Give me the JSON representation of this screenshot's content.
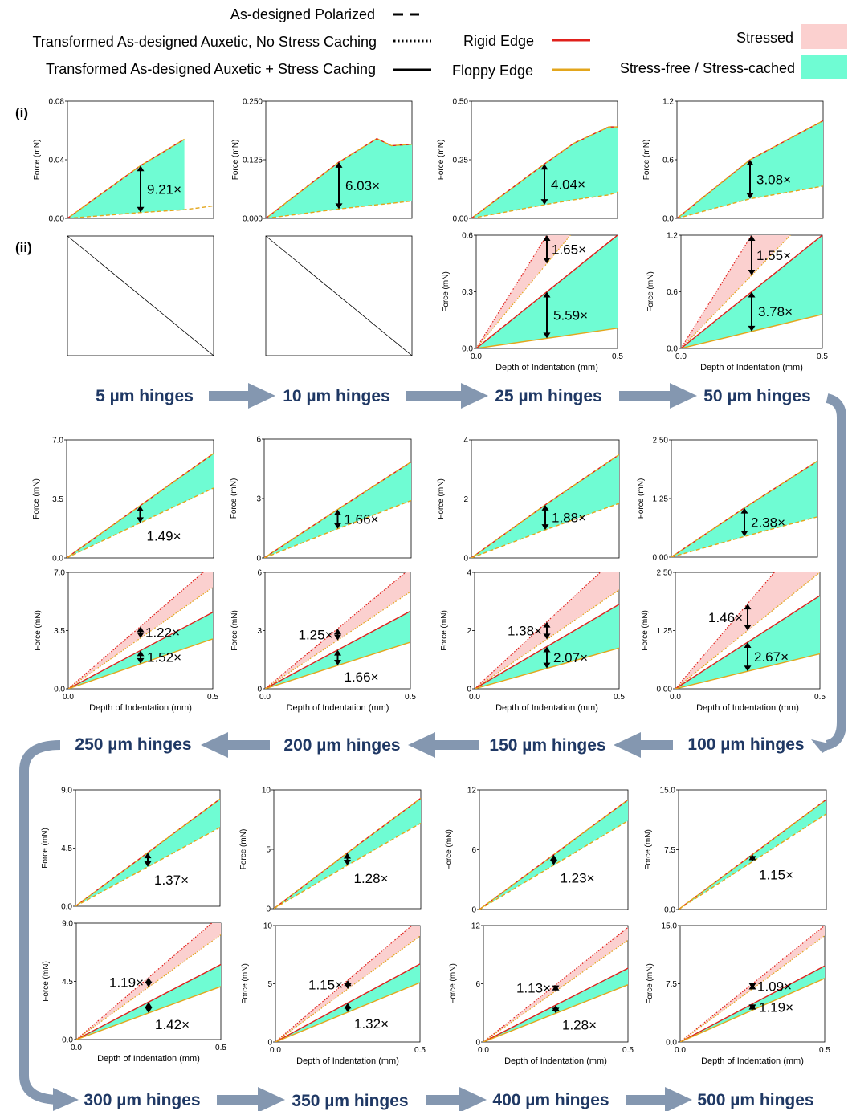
{
  "colors": {
    "rigid": "#e0201b",
    "floppy": "#e3a61c",
    "stressed": "#fbd0cf",
    "stressfree": "#6ffcd3",
    "arrow": "#8497b0",
    "hinge_text": "#1f3864"
  },
  "legend": {
    "polarized": "As-designed Polarized",
    "no_cache": "Transformed As-designed Auxetic, No Stress Caching",
    "cache": "Transformed As-designed Auxetic + Stress Caching",
    "rigid": "Rigid Edge",
    "floppy": "Floppy Edge",
    "stressed": "Stressed",
    "stressfree": "Stress-free / Stress-cached"
  },
  "row_labels": {
    "i": "(i)",
    "ii": "(ii)"
  },
  "axis": {
    "ylabel": "Force (mN)",
    "xlabel": "Depth of Indentation (mm)"
  },
  "hinges": [
    "5 µm hinges",
    "10 µm hinges",
    "25 µm hinges",
    "50 µm hinges",
    "100 µm hinges",
    "150 µm hinges",
    "200 µm hinges",
    "250 µm hinges",
    "300 µm hinges",
    "350 µm hinges",
    "400 µm hinges",
    "500 µm hinges"
  ],
  "chart_data": [
    {
      "type": "area",
      "hinge": "5 µm hinges",
      "panel": "i",
      "x": [
        0,
        0.25,
        0.4
      ],
      "rigid_y": [
        0,
        0.036,
        0.054
      ],
      "floppy_y": [
        0,
        0.004,
        0.0059
      ],
      "floppy_ext": [
        0.5,
        0.0085
      ],
      "ratio_label": "9.21×",
      "ylim": [
        0,
        0.08
      ],
      "yticks": [
        "0.00",
        "0.04",
        "0.08"
      ],
      "xticks": []
    },
    {
      "type": "empty",
      "hinge": "5 µm hinges",
      "panel": "ii"
    },
    {
      "type": "area",
      "hinge": "10 µm hinges",
      "panel": "i",
      "x": [
        0,
        0.25,
        0.38,
        0.43,
        0.5
      ],
      "rigid_y": [
        0,
        0.12,
        0.17,
        0.155,
        0.158
      ],
      "floppy_y": [
        0,
        0.02,
        0.029,
        0.032,
        0.037
      ],
      "ratio_label": "6.03×",
      "ylim": [
        0,
        0.25
      ],
      "yticks": [
        "0.000",
        "0.125",
        "0.250"
      ],
      "xticks": []
    },
    {
      "type": "empty",
      "hinge": "10 µm hinges",
      "panel": "ii"
    },
    {
      "type": "area",
      "hinge": "25 µm hinges",
      "panel": "i",
      "x": [
        0,
        0.25,
        0.35,
        0.47,
        0.5
      ],
      "rigid_y": [
        0,
        0.232,
        0.32,
        0.39,
        0.39
      ],
      "floppy_y": [
        0,
        0.058,
        0.079,
        0.1,
        0.112
      ],
      "ratio_label": "4.04×",
      "ylim": [
        0,
        0.5
      ],
      "yticks": [
        "0.00",
        "0.25",
        "0.50"
      ],
      "xticks": []
    },
    {
      "type": "line",
      "hinge": "25 µm hinges",
      "panel": "ii",
      "x": [
        0,
        0.5
      ],
      "nocache_rigid": [
        0,
        1.2
      ],
      "nocache_floppy": [
        0,
        0.9
      ],
      "rigid_y": [
        0,
        0.6
      ],
      "floppy_y": [
        0,
        0.107
      ],
      "ratio_upper": "1.65×",
      "ratio_lower": "5.59×",
      "ylim": [
        0,
        0.6
      ],
      "yticks": [
        "0.0",
        "0.3",
        "0.6"
      ],
      "xticks": [
        "0.0",
        "0.5"
      ]
    },
    {
      "type": "area",
      "hinge": "50 µm hinges",
      "panel": "i",
      "x": [
        0,
        0.25,
        0.5
      ],
      "rigid_y": [
        0,
        0.6,
        1.0
      ],
      "floppy_y": [
        0,
        0.2,
        0.33
      ],
      "ratio_label": "3.08×",
      "ylim": [
        0,
        1.2
      ],
      "yticks": [
        "0.0",
        "0.6",
        "1.2"
      ],
      "xticks": []
    },
    {
      "type": "line",
      "hinge": "50 µm hinges",
      "panel": "ii",
      "x": [
        0,
        0.5
      ],
      "nocache_rigid": [
        0,
        2.4
      ],
      "nocache_floppy": [
        0,
        1.55
      ],
      "rigid_y": [
        0,
        1.2
      ],
      "floppy_y": [
        0,
        0.36
      ],
      "ratio_upper": "1.55×",
      "ratio_lower": "3.78×",
      "ylim": [
        0,
        1.2
      ],
      "yticks": [
        "0.0",
        "0.6",
        "1.2"
      ],
      "xticks": [
        "0.0",
        "0.5"
      ]
    },
    {
      "type": "area",
      "hinge": "100 µm hinges",
      "panel": "i",
      "x": [
        0,
        0.25,
        0.5
      ],
      "rigid_y": [
        0,
        1.05,
        2.05
      ],
      "floppy_y": [
        0,
        0.44,
        0.86
      ],
      "ratio_label": "2.38×",
      "ylim": [
        0,
        2.5
      ],
      "yticks": [
        "0.00",
        "1.25",
        "2.50"
      ],
      "xticks": []
    },
    {
      "type": "line",
      "hinge": "100 µm hinges",
      "panel": "ii",
      "x": [
        0,
        0.5
      ],
      "nocache_rigid": [
        0,
        3.65
      ],
      "nocache_floppy": [
        0,
        2.5
      ],
      "rigid_y": [
        0,
        2.0
      ],
      "floppy_y": [
        0,
        0.75
      ],
      "ratio_upper": "1.46×",
      "ratio_lower": "2.67×",
      "ylim": [
        0,
        2.5
      ],
      "yticks": [
        "0.00",
        "1.25",
        "2.50"
      ],
      "xticks": [
        "0.0",
        "0.5"
      ]
    },
    {
      "type": "area",
      "hinge": "150 µm hinges",
      "panel": "i",
      "x": [
        0,
        0.25,
        0.5
      ],
      "rigid_y": [
        0,
        1.8,
        3.5
      ],
      "floppy_y": [
        0,
        0.95,
        1.85
      ],
      "ratio_label": "1.88×",
      "ylim": [
        0,
        4
      ],
      "yticks": [
        "0",
        "2",
        "4"
      ],
      "xticks": []
    },
    {
      "type": "line",
      "hinge": "150 µm hinges",
      "panel": "ii",
      "x": [
        0,
        0.5
      ],
      "nocache_rigid": [
        0,
        4.6
      ],
      "nocache_floppy": [
        0,
        3.4
      ],
      "rigid_y": [
        0,
        2.9
      ],
      "floppy_y": [
        0,
        1.4
      ],
      "ratio_upper": "1.38×",
      "ratio_lower": "2.07×",
      "ylim": [
        0,
        4
      ],
      "yticks": [
        "0",
        "2",
        "4"
      ],
      "xticks": [
        "0.0",
        "0.5"
      ]
    },
    {
      "type": "area",
      "hinge": "200 µm hinges",
      "panel": "i",
      "x": [
        0,
        0.25,
        0.5
      ],
      "rigid_y": [
        0,
        2.45,
        4.85
      ],
      "floppy_y": [
        0,
        1.47,
        2.9
      ],
      "ratio_label": "1.66×",
      "ylim": [
        0,
        6
      ],
      "yticks": [
        "0",
        "3",
        "6"
      ],
      "xticks": []
    },
    {
      "type": "line",
      "hinge": "200 µm hinges",
      "panel": "ii",
      "x": [
        0,
        0.5
      ],
      "nocache_rigid": [
        0,
        6.2
      ],
      "nocache_floppy": [
        0,
        5.0
      ],
      "rigid_y": [
        0,
        4.0
      ],
      "floppy_y": [
        0,
        2.4
      ],
      "ratio_upper": "1.25×",
      "ratio_lower": "1.66×",
      "ylim": [
        0,
        6
      ],
      "yticks": [
        "0",
        "3",
        "6"
      ],
      "xticks": [
        "0.0",
        "0.5"
      ]
    },
    {
      "type": "area",
      "hinge": "250 µm hinges",
      "panel": "i",
      "x": [
        0,
        0.25,
        0.5
      ],
      "rigid_y": [
        0,
        3.1,
        6.2
      ],
      "floppy_y": [
        0,
        2.08,
        4.15
      ],
      "ratio_label": "1.49×",
      "ylim": [
        0,
        7
      ],
      "yticks": [
        "0.0",
        "3.5",
        "7.0"
      ],
      "xticks": []
    },
    {
      "type": "line",
      "hinge": "250 µm hinges",
      "panel": "ii",
      "x": [
        0,
        0.5
      ],
      "nocache_rigid": [
        0,
        7.5
      ],
      "nocache_floppy": [
        0,
        6.1
      ],
      "rigid_y": [
        0,
        4.6
      ],
      "floppy_y": [
        0,
        3.0
      ],
      "ratio_upper": "1.22×",
      "ratio_lower": "1.52×",
      "ylim": [
        0,
        7
      ],
      "yticks": [
        "0.0",
        "3.5",
        "7.0"
      ],
      "xticks": [
        "0.0",
        "0.5"
      ]
    },
    {
      "type": "area",
      "hinge": "300 µm hinges",
      "panel": "i",
      "x": [
        0,
        0.25,
        0.5
      ],
      "rigid_y": [
        0,
        4.15,
        8.3
      ],
      "floppy_y": [
        0,
        3.05,
        6.1
      ],
      "ratio_label": "1.37×",
      "ylim": [
        0,
        9
      ],
      "yticks": [
        "0.0",
        "4.5",
        "9.0"
      ],
      "xticks": []
    },
    {
      "type": "line",
      "hinge": "300 µm hinges",
      "panel": "ii",
      "x": [
        0,
        0.5
      ],
      "nocache_rigid": [
        0,
        9.6
      ],
      "nocache_floppy": [
        0,
        8.1
      ],
      "rigid_y": [
        0,
        5.8
      ],
      "floppy_y": [
        0,
        4.1
      ],
      "ratio_upper": "1.19×",
      "ratio_lower": "1.42×",
      "ylim": [
        0,
        9
      ],
      "yticks": [
        "0.0",
        "4.5",
        "9.0"
      ],
      "xticks": [
        "0.0",
        "0.5"
      ]
    },
    {
      "type": "area",
      "hinge": "350 µm hinges",
      "panel": "i",
      "x": [
        0,
        0.25,
        0.5
      ],
      "rigid_y": [
        0,
        4.7,
        9.3
      ],
      "floppy_y": [
        0,
        3.65,
        7.2
      ],
      "ratio_label": "1.28×",
      "ylim": [
        0,
        10
      ],
      "yticks": [
        "0",
        "5",
        "10"
      ],
      "xticks": []
    },
    {
      "type": "line",
      "hinge": "350 µm hinges",
      "panel": "ii",
      "x": [
        0,
        0.5
      ],
      "nocache_rigid": [
        0,
        10.6
      ],
      "nocache_floppy": [
        0,
        9.1
      ],
      "rigid_y": [
        0,
        6.7
      ],
      "floppy_y": [
        0,
        5.1
      ],
      "ratio_upper": "1.15×",
      "ratio_lower": "1.32×",
      "ylim": [
        0,
        10
      ],
      "yticks": [
        "0",
        "5",
        "10"
      ],
      "xticks": [
        "0.0",
        "0.5"
      ]
    },
    {
      "type": "area",
      "hinge": "400 µm hinges",
      "panel": "i",
      "x": [
        0,
        0.25,
        0.5
      ],
      "rigid_y": [
        0,
        5.5,
        11.0
      ],
      "floppy_y": [
        0,
        4.45,
        8.9
      ],
      "ratio_label": "1.23×",
      "ylim": [
        0,
        12
      ],
      "yticks": [
        "0",
        "6",
        "12"
      ],
      "xticks": []
    },
    {
      "type": "line",
      "hinge": "400 µm hinges",
      "panel": "ii",
      "x": [
        0,
        0.5
      ],
      "nocache_rigid": [
        0,
        11.8
      ],
      "nocache_floppy": [
        0,
        10.5
      ],
      "rigid_y": [
        0,
        7.6
      ],
      "floppy_y": [
        0,
        5.9
      ],
      "ratio_upper": "1.13×",
      "ratio_lower": "1.28×",
      "ylim": [
        0,
        12
      ],
      "yticks": [
        "0",
        "6",
        "12"
      ],
      "xticks": [
        "0.0",
        "0.5"
      ]
    },
    {
      "type": "area",
      "hinge": "500 µm hinges",
      "panel": "i",
      "x": [
        0,
        0.25,
        0.5
      ],
      "rigid_y": [
        0,
        6.9,
        13.8
      ],
      "floppy_y": [
        0,
        6.0,
        12.0
      ],
      "ratio_label": "1.15×",
      "ylim": [
        0,
        15
      ],
      "yticks": [
        "0.0",
        "7.5",
        "15.0"
      ],
      "xticks": []
    },
    {
      "type": "line",
      "hinge": "500 µm hinges",
      "panel": "ii",
      "x": [
        0,
        0.5
      ],
      "nocache_rigid": [
        0,
        15.0
      ],
      "nocache_floppy": [
        0,
        13.7
      ],
      "rigid_y": [
        0,
        9.8
      ],
      "floppy_y": [
        0,
        8.2
      ],
      "ratio_upper": "1.09×",
      "ratio_lower": "1.19×",
      "ylim": [
        0,
        15
      ],
      "yticks": [
        "0.0",
        "7.5",
        "15.0"
      ],
      "xticks": [
        "0.0",
        "0.5"
      ]
    }
  ]
}
